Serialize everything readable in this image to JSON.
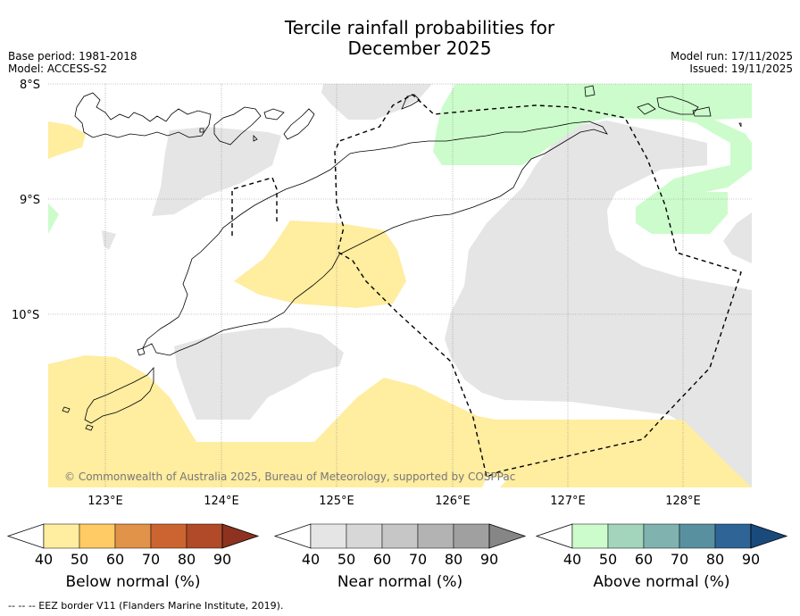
{
  "header": {
    "title_line1": "Tercile rainfall probabilities for",
    "title_line2": "December 2025",
    "base_period": "Base period: 1981-2018",
    "model": "Model: ACCESS-S2",
    "model_run": "Model run: 17/11/2025",
    "issued": "Issued: 19/11/2025"
  },
  "map": {
    "lat_labels": [
      "8°S",
      "9°S",
      "10°S"
    ],
    "lon_labels": [
      "123°E",
      "124°E",
      "125°E",
      "126°E",
      "127°E",
      "128°E"
    ],
    "copyright": "© Commonwealth of Australia 2025, Bureau of Meteorology, supported by COSPPac"
  },
  "colorbars": [
    {
      "label": "Below normal (%)",
      "ticks": [
        "40",
        "50",
        "60",
        "70",
        "80",
        "90"
      ],
      "colors": [
        "#ffeda0",
        "#fecb65",
        "#e1934a",
        "#cc6431",
        "#b04a28",
        "#8e3220"
      ]
    },
    {
      "label": "Near normal (%)",
      "ticks": [
        "40",
        "50",
        "60",
        "70",
        "80",
        "90"
      ],
      "colors": [
        "#e5e5e5",
        "#d7d7d7",
        "#c6c6c6",
        "#b3b3b3",
        "#a0a0a0",
        "#868686"
      ]
    },
    {
      "label": "Above normal (%)",
      "ticks": [
        "40",
        "50",
        "60",
        "70",
        "80",
        "90"
      ],
      "colors": [
        "#ccfccc",
        "#a2d5bc",
        "#80b3b0",
        "#5990a0",
        "#2e6496",
        "#1a4a7c"
      ]
    }
  ],
  "colors": {
    "below": "#ffeda0",
    "near": "#e5e5e5",
    "above": "#ccfccc",
    "coast": "#000000",
    "grid": "#888888"
  },
  "footnote": "--  --  -- EEZ border V11 (Flanders Marine Institute, 2019)."
}
